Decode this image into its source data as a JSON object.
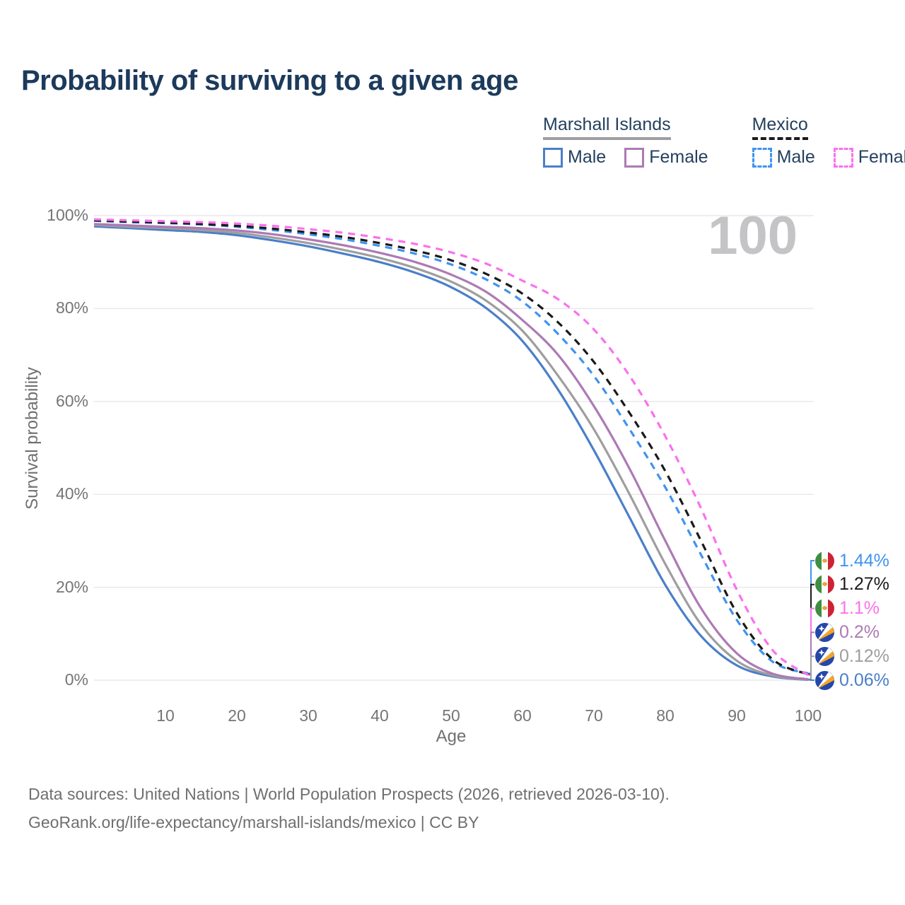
{
  "title": "Probability of surviving to a given age",
  "legend": {
    "groups": [
      {
        "label": "Marshall Islands",
        "underline_style": "solid",
        "underline_color": "#9e9e9e",
        "items": [
          {
            "label": "Male",
            "color": "#4a7fc9",
            "line_style": "solid"
          },
          {
            "label": "Female",
            "color": "#ad7ab5",
            "line_style": "solid"
          }
        ]
      },
      {
        "label": "Mexico",
        "underline_style": "dashed",
        "underline_color": "#1a1a1a",
        "items": [
          {
            "label": "Male",
            "color": "#3f93f0",
            "line_style": "dashed"
          },
          {
            "label": "Female",
            "color": "#fb70ee",
            "line_style": "dashed"
          }
        ]
      }
    ]
  },
  "chart_data": {
    "type": "line",
    "title": "Probability of surviving to a given age",
    "xlabel": "Age",
    "ylabel": "Survival probability",
    "xlim": [
      0,
      100
    ],
    "ylim": [
      0,
      100
    ],
    "grid": "horizontal",
    "x_ticks": [
      10,
      20,
      30,
      40,
      50,
      60,
      70,
      80,
      90,
      100
    ],
    "y_ticks": [
      "0%",
      "20%",
      "40%",
      "60%",
      "80%",
      "100%"
    ],
    "age_marker": "100",
    "x": [
      0,
      5,
      10,
      15,
      20,
      25,
      30,
      35,
      40,
      45,
      50,
      55,
      60,
      65,
      70,
      75,
      80,
      85,
      90,
      95,
      100
    ],
    "series": [
      {
        "name": "Marshall Islands Male",
        "country": "Marshall Islands",
        "color": "#4a7fc9",
        "line_style": "solid",
        "values": [
          97.7,
          97.3,
          96.9,
          96.5,
          95.8,
          94.7,
          93.4,
          91.8,
          90.0,
          87.7,
          84.6,
          80.0,
          73.0,
          62.5,
          49.5,
          35.0,
          20.5,
          9.5,
          3.2,
          0.8,
          0.06
        ]
      },
      {
        "name": "Marshall Islands",
        "country": "Marshall Islands",
        "color": "#9e9e9e",
        "line_style": "solid",
        "values": [
          98.0,
          97.6,
          97.3,
          96.9,
          96.3,
          95.3,
          94.1,
          92.6,
          90.9,
          88.7,
          85.8,
          81.6,
          75.2,
          65.5,
          54.0,
          40.0,
          25.0,
          12.0,
          4.2,
          1.0,
          0.12
        ]
      },
      {
        "name": "Marshall Islands Female",
        "country": "Marshall Islands",
        "color": "#ad7ab5",
        "line_style": "solid",
        "values": [
          98.2,
          97.9,
          97.6,
          97.3,
          96.8,
          96.0,
          94.9,
          93.6,
          92.0,
          90.0,
          87.3,
          83.5,
          77.5,
          70.0,
          59.0,
          45.5,
          30.0,
          15.5,
          5.8,
          1.4,
          0.2
        ]
      },
      {
        "name": "Mexico Male",
        "country": "Mexico",
        "color": "#3f93f0",
        "line_style": "dashed",
        "values": [
          98.9,
          98.6,
          98.4,
          98.1,
          97.6,
          96.9,
          96.0,
          94.9,
          93.5,
          91.8,
          89.5,
          86.2,
          81.5,
          74.5,
          65.5,
          54.0,
          41.5,
          27.0,
          13.0,
          4.0,
          1.44
        ]
      },
      {
        "name": "Mexico",
        "country": "Mexico",
        "color": "#1a1a1a",
        "line_style": "dashed",
        "values": [
          99.0,
          98.7,
          98.5,
          98.2,
          97.8,
          97.2,
          96.4,
          95.4,
          94.1,
          92.5,
          90.4,
          87.4,
          83.2,
          77.0,
          68.5,
          57.5,
          45.0,
          30.0,
          14.5,
          4.5,
          1.27
        ]
      },
      {
        "name": "Mexico Female",
        "country": "Mexico",
        "color": "#fb70ee",
        "line_style": "dashed",
        "values": [
          99.2,
          99.0,
          98.8,
          98.6,
          98.3,
          97.8,
          97.1,
          96.3,
          95.2,
          93.9,
          92.1,
          89.6,
          86.0,
          82.0,
          75.5,
          65.5,
          52.5,
          37.0,
          19.5,
          6.5,
          1.1
        ]
      }
    ]
  },
  "end_labels": [
    {
      "series": "Mexico Male",
      "value": "1.44%",
      "flag": "mexico-flag-icon"
    },
    {
      "series": "Mexico",
      "value": "1.27%",
      "flag": "mexico-flag-icon"
    },
    {
      "series": "Mexico Female",
      "value": "1.1%",
      "flag": "mexico-flag-icon"
    },
    {
      "series": "Marshall Islands Female",
      "value": "0.2%",
      "flag": "marshall-islands-flag-icon"
    },
    {
      "series": "Marshall Islands",
      "value": "0.12%",
      "flag": "marshall-islands-flag-icon"
    },
    {
      "series": "Marshall Islands Male",
      "value": "0.06%",
      "flag": "marshall-islands-flag-icon"
    }
  ],
  "colors": {
    "title_text": "#1c3a5c",
    "legend_text": "#24405e",
    "axis_text": "#757575",
    "grid": "#e9e9ed",
    "watermark": "#c4c4c6",
    "footer_text": "#6f6f6f"
  },
  "footer": {
    "line1": "Data sources: United Nations | World Population Prospects (2026, retrieved 2026-03-10).",
    "line2": "GeoRank.org/life-expectancy/marshall-islands/mexico | CC BY"
  }
}
